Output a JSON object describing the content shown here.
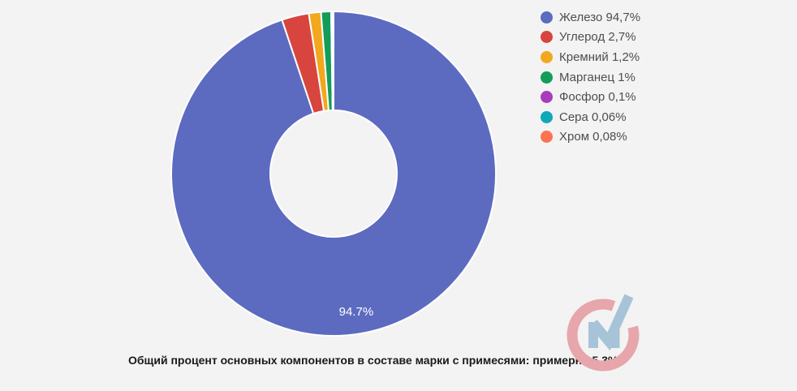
{
  "page": {
    "background": "#f3f3f3"
  },
  "chart_data": {
    "type": "pie",
    "subtype": "donut",
    "start_angle_deg": 0,
    "direction": "clockwise",
    "legend_position": "right",
    "categories": [
      "Железо",
      "Углерод",
      "Кремний",
      "Марганец",
      "Фосфор",
      "Сера",
      "Хром"
    ],
    "values": [
      94.7,
      2.7,
      1.2,
      1,
      0.1,
      0.06,
      0.08
    ],
    "colors": [
      "#5c6bc0",
      "#d8453e",
      "#f2a81d",
      "#129d5a",
      "#a93cbb",
      "#0fa8b8",
      "#fb7351"
    ],
    "legend_labels": [
      "Железо 94,7%",
      "Углерод 2,7%",
      "Кремний 1,2%",
      "Марганец 1%",
      "Фосфор 0,1%",
      "Сера 0,06%",
      "Хром 0,08%"
    ],
    "slice_label": {
      "text": "94.7%",
      "color": "#ffffff",
      "slice_index": 0
    },
    "border_color": "#ffffff"
  },
  "caption": {
    "text": "Общий процент основных компонентов в составе марки с примесями: примерно 5,3%"
  },
  "logo": {
    "ring_color": "#e7a6ab",
    "mark_color": "#a6c3d8"
  }
}
